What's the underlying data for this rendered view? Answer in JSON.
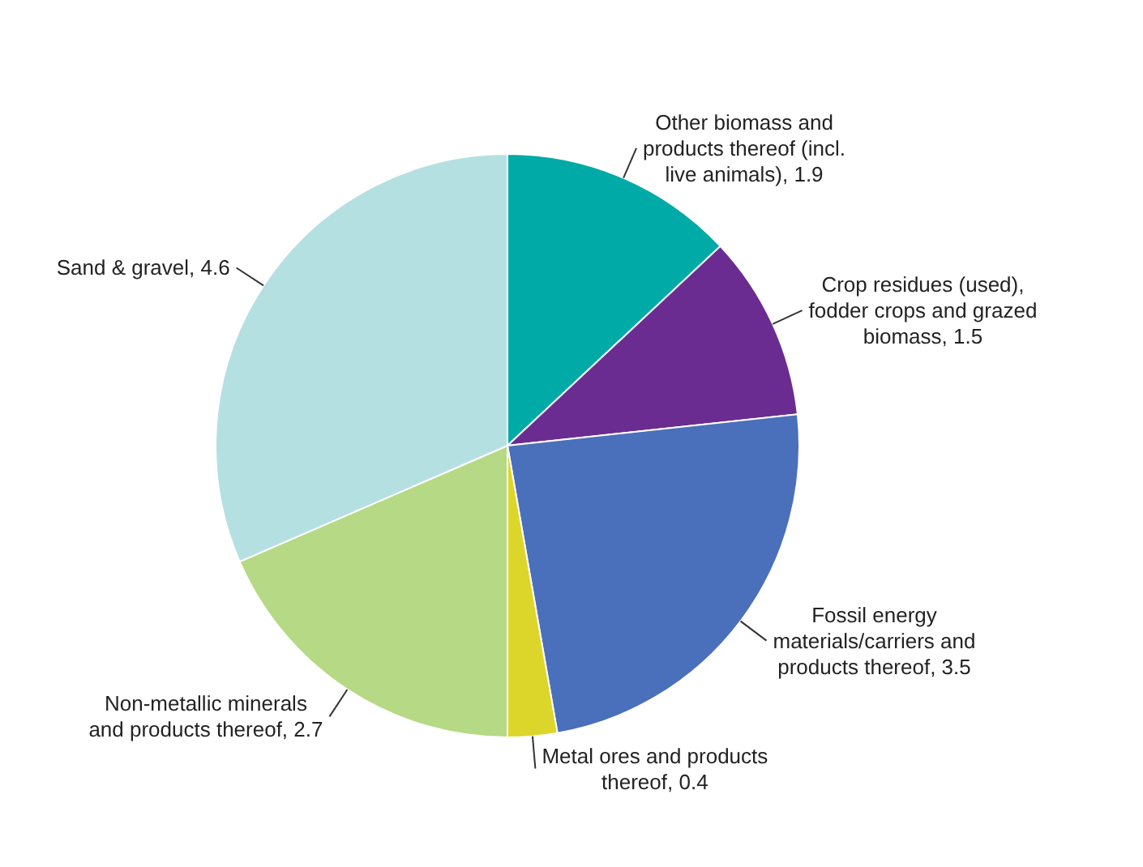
{
  "chart_data": {
    "type": "pie",
    "categories": [
      "Other biomass and products thereof (incl. live animals)",
      "Crop residues (used), fodder crops and grazed biomass",
      "Fossil energy materials/carriers and products thereof",
      "Metal ores and products thereof",
      "Non-metallic minerals and products thereof",
      "Sand & gravel"
    ],
    "values": [
      1.9,
      1.5,
      3.5,
      0.4,
      2.7,
      4.6
    ],
    "colors": [
      "#00aaa6",
      "#6b2c91",
      "#4a6fbb",
      "#ddd62a",
      "#b6d985",
      "#b5e0e1"
    ],
    "value_labels": [
      ", 1.9",
      ", 1.5",
      ", 3.5",
      ", 0.4",
      ", 2.7",
      ", 4.6"
    ],
    "legend": false
  }
}
